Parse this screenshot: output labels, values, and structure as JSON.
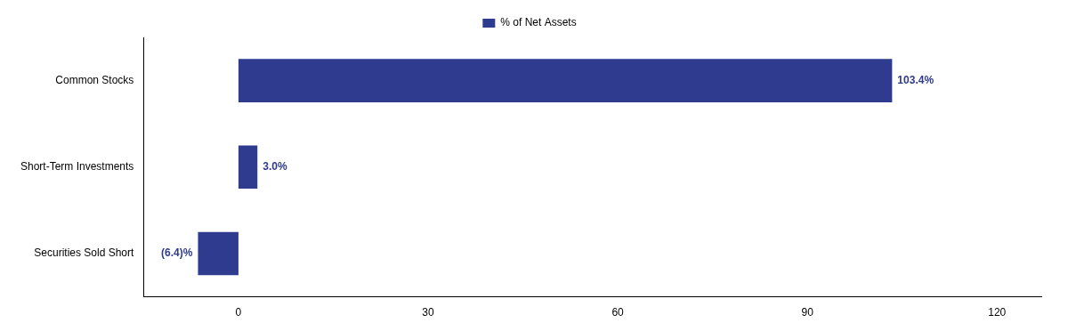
{
  "chart_data": {
    "type": "bar",
    "orientation": "horizontal",
    "categories": [
      "Common Stocks",
      "Short-Term Investments",
      "Securities Sold Short"
    ],
    "series": [
      {
        "name": "% of Net Assets",
        "color": "#2e3b8e",
        "values": [
          103.4,
          3.0,
          -6.4
        ],
        "value_labels": [
          "103.4%",
          "3.0%",
          "(6.4)%"
        ]
      }
    ],
    "data_labels": true,
    "xlim": [
      -15,
      127
    ],
    "xticks": [
      0,
      30,
      60,
      90,
      120
    ],
    "grid": false,
    "legend": "top"
  }
}
